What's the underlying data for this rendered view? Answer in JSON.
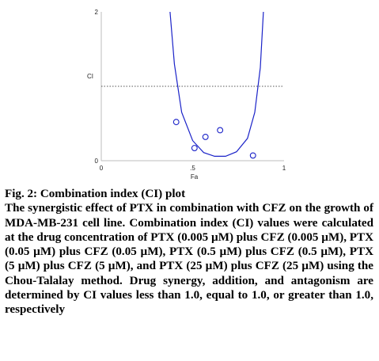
{
  "chart_data": {
    "type": "scatter",
    "xlabel": "Fa",
    "ylabel": "CI",
    "xlim": [
      0,
      1
    ],
    "ylim": [
      0,
      2
    ],
    "x_ticks": [
      "0",
      ".5",
      "1"
    ],
    "y_ticks": [
      "0",
      "1",
      "2"
    ],
    "reference_line": {
      "y": 1,
      "style": "dotted"
    },
    "points": [
      {
        "x": 0.41,
        "y": 0.52
      },
      {
        "x": 0.51,
        "y": 0.17
      },
      {
        "x": 0.57,
        "y": 0.32
      },
      {
        "x": 0.65,
        "y": 0.41
      },
      {
        "x": 0.83,
        "y": 0.07
      }
    ],
    "fit_curve": [
      [
        0.376,
        2.0
      ],
      [
        0.4,
        1.3
      ],
      [
        0.44,
        0.65
      ],
      [
        0.5,
        0.27
      ],
      [
        0.56,
        0.11
      ],
      [
        0.62,
        0.06
      ],
      [
        0.68,
        0.06
      ],
      [
        0.74,
        0.12
      ],
      [
        0.8,
        0.3
      ],
      [
        0.84,
        0.65
      ],
      [
        0.87,
        1.25
      ],
      [
        0.887,
        2.0
      ]
    ]
  },
  "caption": {
    "title": "Fig. 2: Combination index (CI) plot",
    "body": "The synergistic effect of PTX in combination with CFZ on the growth of MDA-MB-231 cell line. Combination index (CI) values were calculated at the drug concentration of PTX (0.005 µM) plus CFZ (0.005 µM), PTX (0.05 µM) plus CFZ (0.05 µM), PTX (0.5 µM) plus CFZ (0.5 µM), PTX (5 µM) plus CFZ (5 µM), and PTX (25 µM) plus CFZ (25 µM) using the Chou-Talalay method. Drug synergy, addition, and antagonism are determined by CI values less than 1.0, equal to 1.0, or greater than 1.0, respectively"
  }
}
